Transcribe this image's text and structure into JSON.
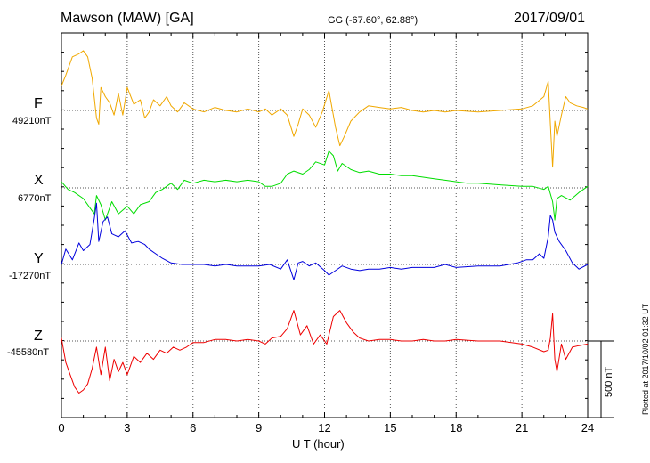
{
  "header": {
    "station": "Mawson (MAW)  [GA]",
    "coords": "GG (-67.60°,  62.88°)",
    "date": "2017/09/01"
  },
  "footer": {
    "plotted": "Plotted at 2017/10/02 01:32 UT"
  },
  "chart_data": {
    "type": "line",
    "xlabel": "U T (hour)",
    "xlim": [
      0,
      24
    ],
    "xticks": [
      "0",
      "3",
      "6",
      "9",
      "12",
      "15",
      "18",
      "21",
      "24"
    ],
    "grid": true,
    "scale_bar": {
      "value": 500,
      "label": "500 nT"
    },
    "series": [
      {
        "name": "F",
        "baseline_label": "49210nT",
        "baseline": 49210,
        "color": "#f0a800",
        "points": [
          [
            0,
            49370
          ],
          [
            0.2,
            49440
          ],
          [
            0.5,
            49560
          ],
          [
            0.8,
            49580
          ],
          [
            1,
            49600
          ],
          [
            1.2,
            49560
          ],
          [
            1.4,
            49420
          ],
          [
            1.6,
            49160
          ],
          [
            1.7,
            49120
          ],
          [
            1.8,
            49360
          ],
          [
            2,
            49300
          ],
          [
            2.2,
            49260
          ],
          [
            2.4,
            49180
          ],
          [
            2.6,
            49320
          ],
          [
            2.8,
            49180
          ],
          [
            3,
            49360
          ],
          [
            3.3,
            49250
          ],
          [
            3.6,
            49280
          ],
          [
            3.8,
            49160
          ],
          [
            4,
            49200
          ],
          [
            4.2,
            49280
          ],
          [
            4.5,
            49240
          ],
          [
            4.8,
            49300
          ],
          [
            5,
            49240
          ],
          [
            5.3,
            49200
          ],
          [
            5.6,
            49260
          ],
          [
            6,
            49220
          ],
          [
            6.5,
            49200
          ],
          [
            7,
            49230
          ],
          [
            7.5,
            49210
          ],
          [
            8,
            49200
          ],
          [
            8.5,
            49220
          ],
          [
            9,
            49200
          ],
          [
            9.3,
            49220
          ],
          [
            9.6,
            49180
          ],
          [
            10,
            49220
          ],
          [
            10.3,
            49180
          ],
          [
            10.6,
            49040
          ],
          [
            10.8,
            49120
          ],
          [
            11,
            49220
          ],
          [
            11.3,
            49180
          ],
          [
            11.6,
            49100
          ],
          [
            11.9,
            49200
          ],
          [
            12.2,
            49340
          ],
          [
            12.5,
            49100
          ],
          [
            12.7,
            48980
          ],
          [
            12.9,
            49040
          ],
          [
            13.2,
            49140
          ],
          [
            13.6,
            49200
          ],
          [
            14,
            49240
          ],
          [
            14.5,
            49230
          ],
          [
            15,
            49220
          ],
          [
            15.5,
            49230
          ],
          [
            16,
            49210
          ],
          [
            16.5,
            49200
          ],
          [
            17,
            49210
          ],
          [
            17.5,
            49200
          ],
          [
            18,
            49210
          ],
          [
            19,
            49200
          ],
          [
            20,
            49210
          ],
          [
            21,
            49220
          ],
          [
            21.5,
            49240
          ],
          [
            22,
            49300
          ],
          [
            22.2,
            49400
          ],
          [
            22.3,
            49120
          ],
          [
            22.4,
            48840
          ],
          [
            22.5,
            49140
          ],
          [
            22.6,
            49040
          ],
          [
            22.8,
            49180
          ],
          [
            23,
            49300
          ],
          [
            23.2,
            49260
          ],
          [
            23.5,
            49240
          ],
          [
            23.8,
            49230
          ],
          [
            24,
            49220
          ]
        ]
      },
      {
        "name": "X",
        "baseline_label": "6770nT",
        "baseline": 6770,
        "color": "#00dd00",
        "points": [
          [
            0,
            6810
          ],
          [
            0.3,
            6760
          ],
          [
            0.6,
            6740
          ],
          [
            1,
            6700
          ],
          [
            1.3,
            6640
          ],
          [
            1.5,
            6600
          ],
          [
            1.6,
            6720
          ],
          [
            1.8,
            6660
          ],
          [
            2,
            6560
          ],
          [
            2.3,
            6680
          ],
          [
            2.6,
            6600
          ],
          [
            3,
            6650
          ],
          [
            3.3,
            6600
          ],
          [
            3.6,
            6660
          ],
          [
            4,
            6680
          ],
          [
            4.3,
            6740
          ],
          [
            4.6,
            6760
          ],
          [
            5,
            6800
          ],
          [
            5.3,
            6760
          ],
          [
            5.6,
            6820
          ],
          [
            6,
            6800
          ],
          [
            6.5,
            6820
          ],
          [
            7,
            6810
          ],
          [
            7.5,
            6820
          ],
          [
            8,
            6810
          ],
          [
            8.5,
            6820
          ],
          [
            9,
            6810
          ],
          [
            9.3,
            6780
          ],
          [
            9.6,
            6780
          ],
          [
            10,
            6800
          ],
          [
            10.3,
            6860
          ],
          [
            10.6,
            6880
          ],
          [
            11,
            6860
          ],
          [
            11.3,
            6890
          ],
          [
            11.6,
            6940
          ],
          [
            12,
            6920
          ],
          [
            12.2,
            7010
          ],
          [
            12.4,
            6980
          ],
          [
            12.6,
            6880
          ],
          [
            12.8,
            6930
          ],
          [
            13.2,
            6890
          ],
          [
            13.6,
            6870
          ],
          [
            14,
            6880
          ],
          [
            14.5,
            6860
          ],
          [
            15,
            6860
          ],
          [
            15.5,
            6850
          ],
          [
            16,
            6850
          ],
          [
            16.5,
            6840
          ],
          [
            17,
            6830
          ],
          [
            17.5,
            6820
          ],
          [
            18,
            6810
          ],
          [
            18.5,
            6800
          ],
          [
            19,
            6800
          ],
          [
            20,
            6790
          ],
          [
            21,
            6780
          ],
          [
            21.5,
            6780
          ],
          [
            22,
            6760
          ],
          [
            22.2,
            6780
          ],
          [
            22.4,
            6680
          ],
          [
            22.5,
            6560
          ],
          [
            22.6,
            6700
          ],
          [
            22.8,
            6720
          ],
          [
            23.2,
            6690
          ],
          [
            23.6,
            6740
          ],
          [
            24,
            6780
          ]
        ]
      },
      {
        "name": "Y",
        "baseline_label": "-17270nT",
        "baseline": -17270,
        "color": "#0000dd",
        "points": [
          [
            0,
            -17270
          ],
          [
            0.2,
            -17170
          ],
          [
            0.5,
            -17240
          ],
          [
            0.8,
            -17130
          ],
          [
            1,
            -17180
          ],
          [
            1.3,
            -17140
          ],
          [
            1.5,
            -16970
          ],
          [
            1.6,
            -16870
          ],
          [
            1.7,
            -17120
          ],
          [
            1.9,
            -16990
          ],
          [
            2.1,
            -16960
          ],
          [
            2.3,
            -17070
          ],
          [
            2.6,
            -17090
          ],
          [
            2.9,
            -17050
          ],
          [
            3.2,
            -17130
          ],
          [
            3.5,
            -17120
          ],
          [
            3.8,
            -17140
          ],
          [
            4,
            -17170
          ],
          [
            4.3,
            -17200
          ],
          [
            4.6,
            -17230
          ],
          [
            5,
            -17260
          ],
          [
            5.5,
            -17270
          ],
          [
            6,
            -17270
          ],
          [
            6.5,
            -17270
          ],
          [
            7,
            -17280
          ],
          [
            7.5,
            -17270
          ],
          [
            8,
            -17280
          ],
          [
            8.5,
            -17280
          ],
          [
            9,
            -17280
          ],
          [
            9.5,
            -17270
          ],
          [
            10,
            -17300
          ],
          [
            10.3,
            -17240
          ],
          [
            10.6,
            -17370
          ],
          [
            10.8,
            -17260
          ],
          [
            11,
            -17250
          ],
          [
            11.3,
            -17280
          ],
          [
            11.6,
            -17260
          ],
          [
            12,
            -17310
          ],
          [
            12.2,
            -17340
          ],
          [
            12.5,
            -17310
          ],
          [
            12.8,
            -17280
          ],
          [
            13.2,
            -17300
          ],
          [
            13.6,
            -17310
          ],
          [
            14,
            -17300
          ],
          [
            14.5,
            -17300
          ],
          [
            15,
            -17290
          ],
          [
            15.5,
            -17300
          ],
          [
            16,
            -17290
          ],
          [
            16.5,
            -17290
          ],
          [
            17,
            -17290
          ],
          [
            17.5,
            -17270
          ],
          [
            18,
            -17290
          ],
          [
            19,
            -17280
          ],
          [
            20,
            -17280
          ],
          [
            20.8,
            -17260
          ],
          [
            21.2,
            -17240
          ],
          [
            21.5,
            -17240
          ],
          [
            21.8,
            -17200
          ],
          [
            22,
            -17230
          ],
          [
            22.2,
            -17090
          ],
          [
            22.3,
            -16950
          ],
          [
            22.4,
            -16980
          ],
          [
            22.5,
            -17060
          ],
          [
            22.7,
            -17120
          ],
          [
            23,
            -17180
          ],
          [
            23.3,
            -17260
          ],
          [
            23.6,
            -17300
          ],
          [
            24,
            -17270
          ]
        ]
      },
      {
        "name": "Z",
        "baseline_label": "-45580nT",
        "baseline": -45580,
        "color": "#ee0000",
        "points": [
          [
            0,
            -45560
          ],
          [
            0.2,
            -45720
          ],
          [
            0.4,
            -45800
          ],
          [
            0.6,
            -45880
          ],
          [
            0.8,
            -45920
          ],
          [
            1,
            -45900
          ],
          [
            1.2,
            -45860
          ],
          [
            1.4,
            -45760
          ],
          [
            1.6,
            -45620
          ],
          [
            1.8,
            -45800
          ],
          [
            2,
            -45620
          ],
          [
            2.2,
            -45840
          ],
          [
            2.4,
            -45700
          ],
          [
            2.6,
            -45780
          ],
          [
            2.8,
            -45720
          ],
          [
            3,
            -45800
          ],
          [
            3.3,
            -45680
          ],
          [
            3.6,
            -45720
          ],
          [
            3.9,
            -45660
          ],
          [
            4.2,
            -45700
          ],
          [
            4.5,
            -45640
          ],
          [
            4.8,
            -45660
          ],
          [
            5.1,
            -45620
          ],
          [
            5.4,
            -45640
          ],
          [
            5.7,
            -45620
          ],
          [
            6,
            -45590
          ],
          [
            6.5,
            -45590
          ],
          [
            7,
            -45570
          ],
          [
            7.5,
            -45570
          ],
          [
            8,
            -45580
          ],
          [
            8.5,
            -45570
          ],
          [
            9,
            -45580
          ],
          [
            9.3,
            -45600
          ],
          [
            9.6,
            -45560
          ],
          [
            10,
            -45550
          ],
          [
            10.3,
            -45500
          ],
          [
            10.6,
            -45380
          ],
          [
            10.9,
            -45540
          ],
          [
            11.2,
            -45480
          ],
          [
            11.5,
            -45600
          ],
          [
            11.8,
            -45540
          ],
          [
            12.1,
            -45600
          ],
          [
            12.4,
            -45420
          ],
          [
            12.7,
            -45380
          ],
          [
            13,
            -45460
          ],
          [
            13.3,
            -45520
          ],
          [
            13.6,
            -45560
          ],
          [
            14,
            -45580
          ],
          [
            14.5,
            -45570
          ],
          [
            15,
            -45570
          ],
          [
            15.5,
            -45580
          ],
          [
            16,
            -45580
          ],
          [
            16.5,
            -45570
          ],
          [
            17,
            -45580
          ],
          [
            17.5,
            -45580
          ],
          [
            18,
            -45570
          ],
          [
            19,
            -45580
          ],
          [
            20,
            -45580
          ],
          [
            21,
            -45600
          ],
          [
            21.5,
            -45620
          ],
          [
            22,
            -45650
          ],
          [
            22.2,
            -45640
          ],
          [
            22.3,
            -45560
          ],
          [
            22.4,
            -45400
          ],
          [
            22.5,
            -45700
          ],
          [
            22.6,
            -45780
          ],
          [
            22.8,
            -45600
          ],
          [
            23,
            -45700
          ],
          [
            23.3,
            -45620
          ],
          [
            23.6,
            -45610
          ],
          [
            24,
            -45600
          ]
        ]
      }
    ]
  }
}
